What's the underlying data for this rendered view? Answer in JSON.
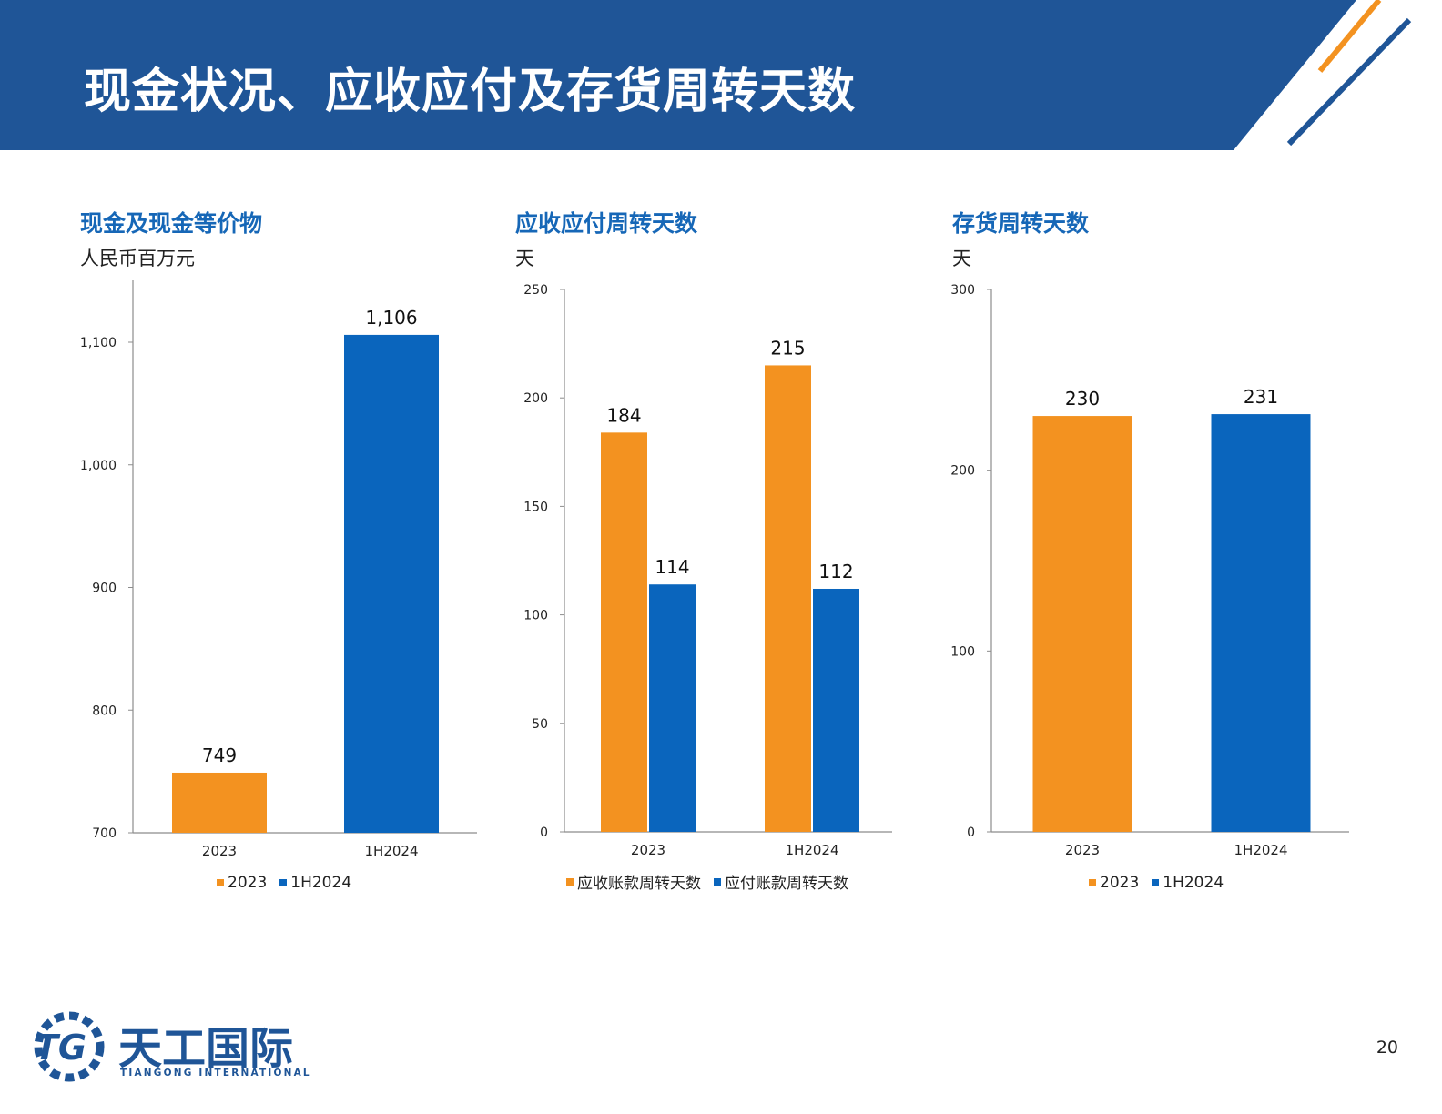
{
  "header": {
    "title": "现金状况、应收应付及存货周转天数"
  },
  "colors": {
    "header_blue": "#1f5597",
    "accent_orange": "#f39220",
    "bar_orange": "#f39220",
    "bar_blue": "#0a65bd",
    "title_blue": "#1667b7"
  },
  "chart_data": [
    {
      "type": "bar",
      "title": "现金及现金等价物",
      "subtitle": "人民币百万元",
      "categories": [
        "2023",
        "1H2024"
      ],
      "values": [
        749,
        1106
      ],
      "value_labels": [
        "749",
        "1,106"
      ],
      "bar_colors": [
        "#f39220",
        "#0a65bd"
      ],
      "ylim": [
        700,
        1150
      ],
      "yticks": [
        700,
        800,
        900,
        1000,
        1100
      ],
      "ytick_labels": [
        "700",
        "800",
        "900",
        "1,000",
        "1,100"
      ],
      "legend": [
        {
          "label": "2023",
          "color": "#f39220"
        },
        {
          "label": "1H2024",
          "color": "#0a65bd"
        }
      ],
      "legend_position": "bottom",
      "grid": false
    },
    {
      "type": "bar",
      "title": "应收应付周转天数",
      "subtitle": "天",
      "categories": [
        "2023",
        "1H2024"
      ],
      "series": [
        {
          "name": "应收账款周转天数",
          "values": [
            184,
            215
          ],
          "value_labels": [
            "184",
            "215"
          ],
          "color": "#f39220"
        },
        {
          "name": "应付账款周转天数",
          "values": [
            114,
            112
          ],
          "value_labels": [
            "114",
            "112"
          ],
          "color": "#0a65bd"
        }
      ],
      "ylim": [
        0,
        250
      ],
      "yticks": [
        0,
        50,
        100,
        150,
        200,
        250
      ],
      "ytick_labels": [
        "0",
        "50",
        "100",
        "150",
        "200",
        "250"
      ],
      "legend": [
        {
          "label": "应收账款周转天数",
          "color": "#f39220"
        },
        {
          "label": "应付账款周转天数",
          "color": "#0a65bd"
        }
      ],
      "legend_position": "bottom",
      "grid": false
    },
    {
      "type": "bar",
      "title": "存货周转天数",
      "subtitle": "天",
      "categories": [
        "2023",
        "1H2024"
      ],
      "values": [
        230,
        231
      ],
      "value_labels": [
        "230",
        "231"
      ],
      "bar_colors": [
        "#f39220",
        "#0a65bd"
      ],
      "ylim": [
        0,
        300
      ],
      "yticks": [
        0,
        100,
        200,
        300
      ],
      "ytick_labels": [
        "0",
        "100",
        "200",
        "300"
      ],
      "legend": [
        {
          "label": "2023",
          "color": "#f39220"
        },
        {
          "label": "1H2024",
          "color": "#0a65bd"
        }
      ],
      "legend_position": "bottom",
      "grid": false
    }
  ],
  "footer": {
    "logo_mark": "TG",
    "logo_cn": "天工国际",
    "logo_en": "TIANGONG INTERNATIONAL",
    "page_number": "20"
  }
}
